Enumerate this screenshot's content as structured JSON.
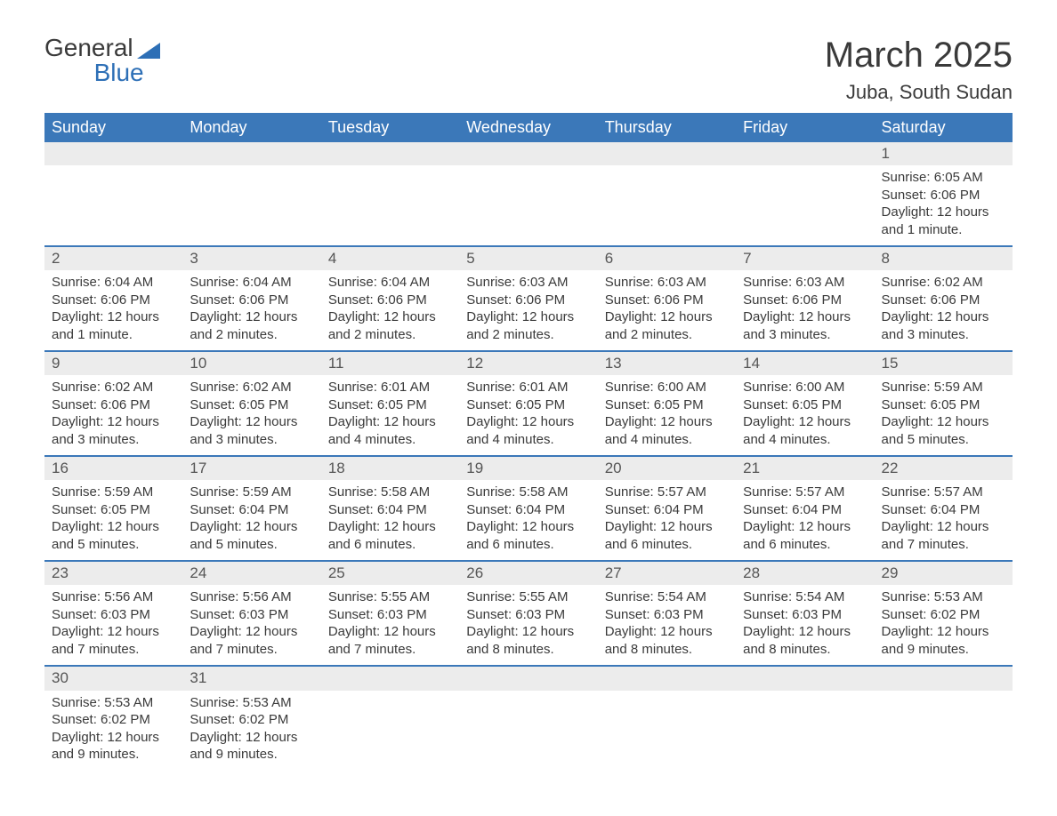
{
  "logo": {
    "text1": "General",
    "text2": "Blue"
  },
  "title": "March 2025",
  "location": "Juba, South Sudan",
  "colors": {
    "header_bg": "#3b78b9",
    "header_text": "#ffffff",
    "daynum_bg": "#ececec",
    "row_border": "#3b78b9",
    "text": "#3a3a3a",
    "body_bg": "#ffffff"
  },
  "typography": {
    "title_fontsize": 40,
    "location_fontsize": 22,
    "header_fontsize": 18,
    "cell_fontsize": 15
  },
  "weekdays": [
    "Sunday",
    "Monday",
    "Tuesday",
    "Wednesday",
    "Thursday",
    "Friday",
    "Saturday"
  ],
  "weeks": [
    [
      null,
      null,
      null,
      null,
      null,
      null,
      {
        "n": "1",
        "sunrise": "Sunrise: 6:05 AM",
        "sunset": "Sunset: 6:06 PM",
        "day1": "Daylight: 12 hours",
        "day2": "and 1 minute."
      }
    ],
    [
      {
        "n": "2",
        "sunrise": "Sunrise: 6:04 AM",
        "sunset": "Sunset: 6:06 PM",
        "day1": "Daylight: 12 hours",
        "day2": "and 1 minute."
      },
      {
        "n": "3",
        "sunrise": "Sunrise: 6:04 AM",
        "sunset": "Sunset: 6:06 PM",
        "day1": "Daylight: 12 hours",
        "day2": "and 2 minutes."
      },
      {
        "n": "4",
        "sunrise": "Sunrise: 6:04 AM",
        "sunset": "Sunset: 6:06 PM",
        "day1": "Daylight: 12 hours",
        "day2": "and 2 minutes."
      },
      {
        "n": "5",
        "sunrise": "Sunrise: 6:03 AM",
        "sunset": "Sunset: 6:06 PM",
        "day1": "Daylight: 12 hours",
        "day2": "and 2 minutes."
      },
      {
        "n": "6",
        "sunrise": "Sunrise: 6:03 AM",
        "sunset": "Sunset: 6:06 PM",
        "day1": "Daylight: 12 hours",
        "day2": "and 2 minutes."
      },
      {
        "n": "7",
        "sunrise": "Sunrise: 6:03 AM",
        "sunset": "Sunset: 6:06 PM",
        "day1": "Daylight: 12 hours",
        "day2": "and 3 minutes."
      },
      {
        "n": "8",
        "sunrise": "Sunrise: 6:02 AM",
        "sunset": "Sunset: 6:06 PM",
        "day1": "Daylight: 12 hours",
        "day2": "and 3 minutes."
      }
    ],
    [
      {
        "n": "9",
        "sunrise": "Sunrise: 6:02 AM",
        "sunset": "Sunset: 6:06 PM",
        "day1": "Daylight: 12 hours",
        "day2": "and 3 minutes."
      },
      {
        "n": "10",
        "sunrise": "Sunrise: 6:02 AM",
        "sunset": "Sunset: 6:05 PM",
        "day1": "Daylight: 12 hours",
        "day2": "and 3 minutes."
      },
      {
        "n": "11",
        "sunrise": "Sunrise: 6:01 AM",
        "sunset": "Sunset: 6:05 PM",
        "day1": "Daylight: 12 hours",
        "day2": "and 4 minutes."
      },
      {
        "n": "12",
        "sunrise": "Sunrise: 6:01 AM",
        "sunset": "Sunset: 6:05 PM",
        "day1": "Daylight: 12 hours",
        "day2": "and 4 minutes."
      },
      {
        "n": "13",
        "sunrise": "Sunrise: 6:00 AM",
        "sunset": "Sunset: 6:05 PM",
        "day1": "Daylight: 12 hours",
        "day2": "and 4 minutes."
      },
      {
        "n": "14",
        "sunrise": "Sunrise: 6:00 AM",
        "sunset": "Sunset: 6:05 PM",
        "day1": "Daylight: 12 hours",
        "day2": "and 4 minutes."
      },
      {
        "n": "15",
        "sunrise": "Sunrise: 5:59 AM",
        "sunset": "Sunset: 6:05 PM",
        "day1": "Daylight: 12 hours",
        "day2": "and 5 minutes."
      }
    ],
    [
      {
        "n": "16",
        "sunrise": "Sunrise: 5:59 AM",
        "sunset": "Sunset: 6:05 PM",
        "day1": "Daylight: 12 hours",
        "day2": "and 5 minutes."
      },
      {
        "n": "17",
        "sunrise": "Sunrise: 5:59 AM",
        "sunset": "Sunset: 6:04 PM",
        "day1": "Daylight: 12 hours",
        "day2": "and 5 minutes."
      },
      {
        "n": "18",
        "sunrise": "Sunrise: 5:58 AM",
        "sunset": "Sunset: 6:04 PM",
        "day1": "Daylight: 12 hours",
        "day2": "and 6 minutes."
      },
      {
        "n": "19",
        "sunrise": "Sunrise: 5:58 AM",
        "sunset": "Sunset: 6:04 PM",
        "day1": "Daylight: 12 hours",
        "day2": "and 6 minutes."
      },
      {
        "n": "20",
        "sunrise": "Sunrise: 5:57 AM",
        "sunset": "Sunset: 6:04 PM",
        "day1": "Daylight: 12 hours",
        "day2": "and 6 minutes."
      },
      {
        "n": "21",
        "sunrise": "Sunrise: 5:57 AM",
        "sunset": "Sunset: 6:04 PM",
        "day1": "Daylight: 12 hours",
        "day2": "and 6 minutes."
      },
      {
        "n": "22",
        "sunrise": "Sunrise: 5:57 AM",
        "sunset": "Sunset: 6:04 PM",
        "day1": "Daylight: 12 hours",
        "day2": "and 7 minutes."
      }
    ],
    [
      {
        "n": "23",
        "sunrise": "Sunrise: 5:56 AM",
        "sunset": "Sunset: 6:03 PM",
        "day1": "Daylight: 12 hours",
        "day2": "and 7 minutes."
      },
      {
        "n": "24",
        "sunrise": "Sunrise: 5:56 AM",
        "sunset": "Sunset: 6:03 PM",
        "day1": "Daylight: 12 hours",
        "day2": "and 7 minutes."
      },
      {
        "n": "25",
        "sunrise": "Sunrise: 5:55 AM",
        "sunset": "Sunset: 6:03 PM",
        "day1": "Daylight: 12 hours",
        "day2": "and 7 minutes."
      },
      {
        "n": "26",
        "sunrise": "Sunrise: 5:55 AM",
        "sunset": "Sunset: 6:03 PM",
        "day1": "Daylight: 12 hours",
        "day2": "and 8 minutes."
      },
      {
        "n": "27",
        "sunrise": "Sunrise: 5:54 AM",
        "sunset": "Sunset: 6:03 PM",
        "day1": "Daylight: 12 hours",
        "day2": "and 8 minutes."
      },
      {
        "n": "28",
        "sunrise": "Sunrise: 5:54 AM",
        "sunset": "Sunset: 6:03 PM",
        "day1": "Daylight: 12 hours",
        "day2": "and 8 minutes."
      },
      {
        "n": "29",
        "sunrise": "Sunrise: 5:53 AM",
        "sunset": "Sunset: 6:02 PM",
        "day1": "Daylight: 12 hours",
        "day2": "and 9 minutes."
      }
    ],
    [
      {
        "n": "30",
        "sunrise": "Sunrise: 5:53 AM",
        "sunset": "Sunset: 6:02 PM",
        "day1": "Daylight: 12 hours",
        "day2": "and 9 minutes."
      },
      {
        "n": "31",
        "sunrise": "Sunrise: 5:53 AM",
        "sunset": "Sunset: 6:02 PM",
        "day1": "Daylight: 12 hours",
        "day2": "and 9 minutes."
      },
      null,
      null,
      null,
      null,
      null
    ]
  ]
}
